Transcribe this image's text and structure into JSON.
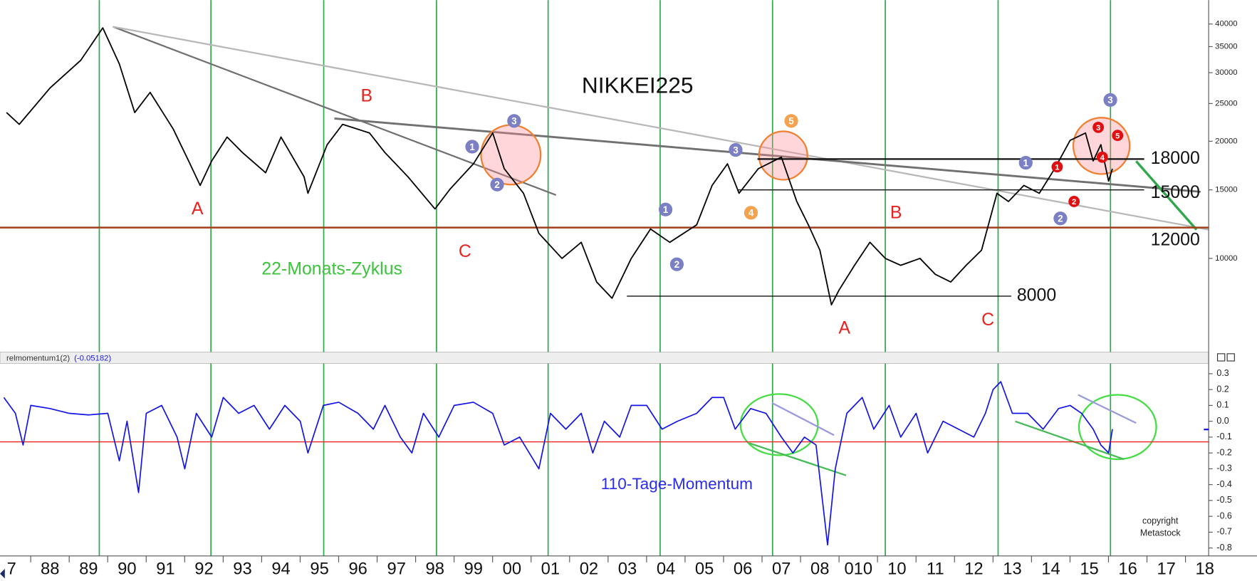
{
  "chart_data": [
    {
      "type": "line",
      "title": "NIKKEI225",
      "log_scale": true,
      "color": "#000000",
      "x": [
        1987.37,
        1987.7,
        1988.5,
        1989.3,
        1989.87,
        1990.3,
        1990.7,
        1991.1,
        1991.7,
        1992.1,
        1992.4,
        1992.7,
        1993.1,
        1993.5,
        1994.1,
        1994.5,
        1995.1,
        1995.2,
        1995.7,
        1996.1,
        1996.8,
        1997.2,
        1997.8,
        1998.5,
        1998.9,
        1999.5,
        2000.0,
        2000.3,
        2000.8,
        2001.2,
        2001.8,
        2002.3,
        2002.7,
        2003.1,
        2003.6,
        2004.1,
        2004.6,
        2005.3,
        2005.7,
        2006.1,
        2006.4,
        2006.9,
        2007.5,
        2007.9,
        2008.2,
        2008.5,
        2008.8,
        2009.0,
        2009.4,
        2009.8,
        2010.2,
        2010.6,
        2011.1,
        2011.5,
        2011.9,
        2012.3,
        2012.7,
        2013.1,
        2013.4,
        2013.8,
        2014.2,
        2014.6,
        2015.0,
        2015.4,
        2015.6,
        2015.8,
        2016.0,
        2016.1
      ],
      "values": [
        23700,
        22100,
        27400,
        32300,
        39100,
        31600,
        23700,
        26700,
        21500,
        17800,
        15400,
        17800,
        20500,
        18700,
        16600,
        20500,
        16200,
        14700,
        19600,
        22100,
        21000,
        18700,
        16200,
        13400,
        15100,
        17500,
        21000,
        17000,
        14700,
        11600,
        10000,
        11000,
        8700,
        7900,
        10000,
        11900,
        11000,
        12200,
        15400,
        17500,
        14700,
        17000,
        18200,
        14000,
        12200,
        10500,
        7600,
        8300,
        9600,
        11000,
        10000,
        9600,
        10000,
        9100,
        8700,
        9600,
        10500,
        14700,
        14000,
        15400,
        14700,
        17000,
        20100,
        21000,
        17800,
        19600,
        15800,
        17000
      ],
      "xlim": [
        1987.2,
        2018.6
      ],
      "ylim": [
        5800,
        45000
      ],
      "yticks": [
        10000,
        15000,
        20000,
        25000,
        30000,
        35000,
        40000
      ],
      "cycle_lines": [
        1989.78,
        1992.68,
        1995.61,
        1998.54,
        2001.44,
        2004.35,
        2007.27,
        2010.2,
        2013.13,
        2016.05
      ],
      "cycle_color": "#2ea84a",
      "levels": [
        18000,
        15000,
        12000,
        8000
      ],
      "annotations": [
        {
          "text": "A",
          "color": "#e8231f"
        },
        {
          "text": "B",
          "color": "#e8231f"
        },
        {
          "text": "C",
          "color": "#e8231f"
        },
        {
          "text": "B",
          "color": "#e8231f"
        },
        {
          "text": "A",
          "color": "#e8231f"
        },
        {
          "text": "C",
          "color": "#e8231f"
        },
        {
          "text": "22-Monats-Zyklus",
          "color": "#3cc43c"
        }
      ],
      "waves": [
        {
          "text": "1",
          "color": "#7b7fc4"
        },
        {
          "text": "2",
          "color": "#7b7fc4"
        },
        {
          "text": "3",
          "color": "#7b7fc4"
        },
        {
          "text": "3",
          "color": "#7b7fc4"
        },
        {
          "text": "1",
          "color": "#7b7fc4"
        },
        {
          "text": "2",
          "color": "#7b7fc4"
        },
        {
          "text": "1",
          "color": "#7b7fc4"
        },
        {
          "text": "2",
          "color": "#7b7fc4"
        },
        {
          "text": "3",
          "color": "#7b7fc4"
        },
        {
          "text": "5",
          "color": "#f4a24e"
        },
        {
          "text": "4",
          "color": "#f4a24e"
        },
        {
          "text": "1",
          "color": "#e01010"
        },
        {
          "text": "2",
          "color": "#e01010"
        },
        {
          "text": "3",
          "color": "#e01010"
        },
        {
          "text": "4",
          "color": "#e01010"
        },
        {
          "text": "5",
          "color": "#e01010"
        }
      ]
    },
    {
      "type": "line",
      "indicator": "relmomentum1(2)",
      "indicator_value": {
        "value": -0.05182,
        "label": "(-0.05182)"
      },
      "color": "#1414e6",
      "x": [
        1987.3,
        1987.6,
        1987.8,
        1988.0,
        1988.5,
        1989.0,
        1989.5,
        1990.0,
        1990.3,
        1990.5,
        1990.8,
        1991.0,
        1991.4,
        1991.8,
        1992.0,
        1992.3,
        1992.7,
        1993.0,
        1993.4,
        1993.8,
        1994.2,
        1994.6,
        1995.0,
        1995.2,
        1995.6,
        1996.0,
        1996.5,
        1996.9,
        1997.2,
        1997.6,
        1997.9,
        1998.2,
        1998.6,
        1999.0,
        1999.5,
        2000.0,
        2000.3,
        2000.7,
        2001.2,
        2001.5,
        2001.9,
        2002.3,
        2002.6,
        2002.9,
        2003.3,
        2003.6,
        2004.0,
        2004.4,
        2004.8,
        2005.3,
        2005.7,
        2006.0,
        2006.3,
        2006.7,
        2007.1,
        2007.5,
        2007.8,
        2008.1,
        2008.4,
        2008.7,
        2008.9,
        2009.2,
        2009.6,
        2009.9,
        2010.3,
        2010.6,
        2011.0,
        2011.3,
        2011.7,
        2012.1,
        2012.5,
        2012.8,
        2013.0,
        2013.2,
        2013.5,
        2013.9,
        2014.3,
        2014.7,
        2015.0,
        2015.3,
        2015.6,
        2015.8,
        2016.0,
        2016.1
      ],
      "values": [
        0.15,
        0.05,
        -0.15,
        0.1,
        0.08,
        0.05,
        0.04,
        0.05,
        -0.25,
        0.0,
        -0.45,
        0.05,
        0.1,
        -0.1,
        -0.3,
        0.05,
        -0.1,
        0.15,
        0.05,
        0.1,
        -0.05,
        0.1,
        0.0,
        -0.2,
        0.1,
        0.12,
        0.05,
        -0.05,
        0.1,
        -0.1,
        -0.2,
        0.05,
        -0.1,
        0.1,
        0.12,
        0.05,
        -0.15,
        -0.1,
        -0.3,
        0.05,
        -0.05,
        0.05,
        -0.2,
        0.0,
        -0.1,
        0.1,
        0.1,
        -0.05,
        0.0,
        0.05,
        0.15,
        0.15,
        -0.05,
        0.08,
        0.05,
        -0.1,
        -0.2,
        -0.1,
        -0.15,
        -0.78,
        -0.3,
        0.05,
        0.15,
        -0.05,
        0.1,
        -0.1,
        0.05,
        -0.2,
        0.0,
        -0.05,
        -0.1,
        0.05,
        0.2,
        0.25,
        0.05,
        0.05,
        -0.05,
        0.08,
        0.1,
        0.05,
        -0.05,
        -0.15,
        -0.2,
        -0.05
      ],
      "xlim": [
        1987.2,
        2018.6
      ],
      "ylim": [
        -0.85,
        0.36
      ],
      "yticks": [
        0.3,
        0.2,
        0.1,
        {
          "value": 0,
          "label": "0.0"
        },
        -0.1,
        -0.2,
        -0.3,
        -0.4,
        -0.5,
        -0.6,
        -0.7,
        -0.8
      ],
      "reference_line": -0.13,
      "reference_color": "#ee2020",
      "xticks": [
        {
          "value": 1987.5,
          "label": "7"
        },
        {
          "value": 1988.5,
          "label": "88"
        },
        {
          "value": 1989.5,
          "label": "89"
        },
        {
          "value": 1990.5,
          "label": "90"
        },
        {
          "value": 1991.5,
          "label": "91"
        },
        {
          "value": 1992.5,
          "label": "92"
        },
        {
          "value": 1993.5,
          "label": "93"
        },
        {
          "value": 1994.5,
          "label": "94"
        },
        {
          "value": 1995.5,
          "label": "95"
        },
        {
          "value": 1996.5,
          "label": "96"
        },
        {
          "value": 1997.5,
          "label": "97"
        },
        {
          "value": 1998.5,
          "label": "98"
        },
        {
          "value": 1999.5,
          "label": "99"
        },
        {
          "value": 2000.5,
          "label": "00"
        },
        {
          "value": 2001.5,
          "label": "01"
        },
        {
          "value": 2002.5,
          "label": "02"
        },
        {
          "value": 2003.5,
          "label": "03"
        },
        {
          "value": 2004.5,
          "label": "04"
        },
        {
          "value": 2005.5,
          "label": "05"
        },
        {
          "value": 2006.5,
          "label": "06"
        },
        {
          "value": 2007.5,
          "label": "07"
        },
        {
          "value": 2008.5,
          "label": "08"
        },
        {
          "value": 2009.5,
          "label": "010"
        },
        {
          "value": 2010.5,
          "label": "10"
        },
        {
          "value": 2011.5,
          "label": "11"
        },
        {
          "value": 2012.5,
          "label": "12"
        },
        {
          "value": 2013.5,
          "label": "13"
        },
        {
          "value": 2014.5,
          "label": "14"
        },
        {
          "value": 2015.5,
          "label": "15"
        },
        {
          "value": 2016.5,
          "label": "16"
        },
        {
          "value": 2017.5,
          "label": "17"
        },
        {
          "value": 2018.5,
          "label": "18"
        }
      ],
      "annotations": [
        {
          "text": "110-Tage-Momentum",
          "color": "#2b2bf0"
        },
        {
          "text": "copyright",
          "color": "#222222"
        },
        {
          "text": "Metastock",
          "color": "#222222"
        }
      ]
    }
  ]
}
